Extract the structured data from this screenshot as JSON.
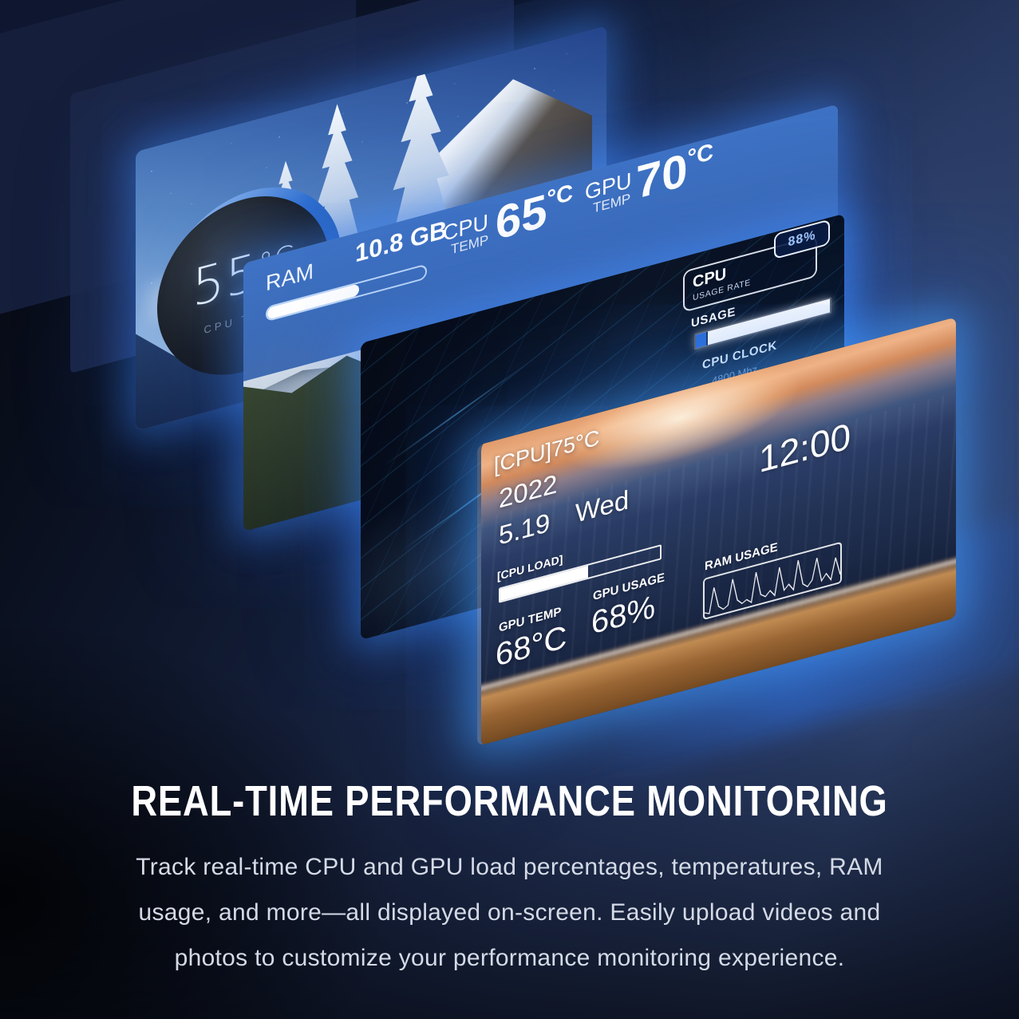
{
  "hero": {
    "headline": "REAL-TIME PERFORMANCE MONITORING",
    "body_lines": [
      "Track real-time CPU and GPU load percentages, temperatures, RAM",
      "usage, and more—all displayed on-screen. Easily upload videos and",
      "photos to customize your performance monitoring experience."
    ]
  },
  "colors": {
    "glow": "#4aa0ff",
    "band_blue": "#3a6fc4",
    "badge_text": "#9fc6ff",
    "bar_blue": "#2e6fd8"
  },
  "screens": {
    "snow": {
      "gauge_value": "55",
      "gauge_unit": "°C",
      "gauge_label": "CPU TEMP"
    },
    "metrics": {
      "ram_label": "RAM",
      "ram_value": "10.8 GB",
      "ram_fill_pct": 58,
      "cpu_label_top": "CPU",
      "cpu_label_bottom": "TEMP",
      "cpu_value": "65",
      "cpu_unit": "°C",
      "gpu_label_top": "GPU",
      "gpu_label_bottom": "TEMP",
      "gpu_value": "70",
      "gpu_unit": "°C"
    },
    "usage": {
      "panel_title": "CPU",
      "panel_subtitle": "USAGE RATE",
      "badge_value": "88%",
      "usage_label": "USAGE",
      "usage_blue_pct": 8,
      "clock_label": "CPU CLOCK",
      "clock_value": "4800 Mhz"
    },
    "beach": {
      "cpu_temp": "[CPU]75°C",
      "time": "12:00",
      "year": "2022",
      "date": "5.19",
      "weekday": "Wed",
      "load_label": "[CPU LOAD]",
      "load_pct": 55,
      "gpu_temp_label": "GPU TEMP",
      "gpu_temp_value": "68°C",
      "gpu_usage_label": "GPU USAGE",
      "gpu_usage_value": "68%",
      "ram_usage_label": "RAM USAGE",
      "ram_waveform": [
        10,
        4,
        78,
        18,
        6,
        14,
        88,
        22,
        8,
        16,
        4,
        90,
        20,
        10,
        24,
        6,
        86,
        14,
        28,
        8,
        92,
        18,
        6,
        22,
        84,
        12,
        30,
        8,
        70,
        16
      ]
    }
  }
}
